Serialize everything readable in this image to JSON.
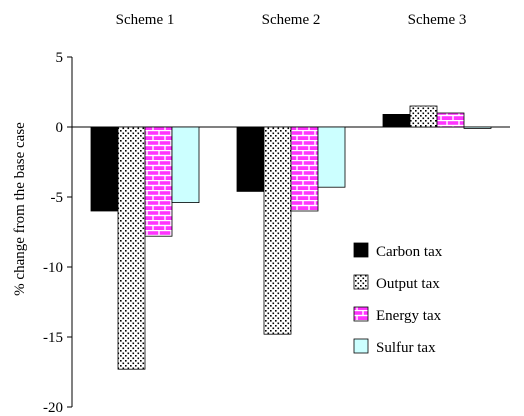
{
  "chart_data": {
    "type": "bar",
    "categories": [
      "Scheme 1",
      "Scheme 2",
      "Scheme 3"
    ],
    "series": [
      {
        "name": "Carbon tax",
        "values": [
          -6.0,
          -4.6,
          0.9
        ]
      },
      {
        "name": "Output tax",
        "values": [
          -17.3,
          -14.8,
          1.5
        ]
      },
      {
        "name": "Energy tax",
        "values": [
          -7.8,
          -6.0,
          1.0
        ]
      },
      {
        "name": "Sulfur tax",
        "values": [
          -5.4,
          -4.3,
          -0.1
        ]
      }
    ],
    "title": "",
    "xlabel": "",
    "ylabel": "% change from the base case",
    "ylim": [
      -20,
      5
    ],
    "yticks": [
      5,
      0,
      -5,
      -10,
      -15,
      -20
    ],
    "ytick_labels": [
      "5",
      "0",
      "-5",
      "-10",
      "-15",
      "-20"
    ],
    "category_labels_position": "top",
    "legend_position": "bottom-right",
    "grid": false,
    "colors": {
      "Carbon tax": "#000000",
      "Output tax": "#ffffff",
      "Energy tax": "#ff33ff",
      "Sulfur tax": "#ccffff"
    }
  }
}
